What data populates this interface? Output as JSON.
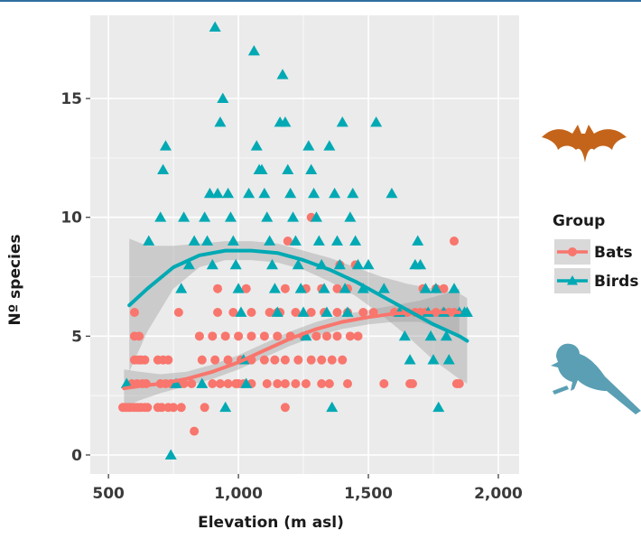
{
  "chart_data": {
    "type": "scatter",
    "title": "",
    "xlabel": "Elevation (m asl)",
    "ylabel": "Nº species",
    "xlim": [
      430,
      2080
    ],
    "ylim": [
      -0.8,
      18.5
    ],
    "x_ticks": [
      500,
      1000,
      1500,
      2000
    ],
    "x_tick_labels": [
      "500",
      "1,000",
      "1,500",
      "2,000"
    ],
    "y_ticks": [
      0,
      5,
      10,
      15
    ],
    "y_tick_labels": [
      "0",
      "5",
      "10",
      "15"
    ],
    "grid": true,
    "legend": {
      "title": "Group",
      "position": "right",
      "entries": [
        {
          "label": "Bats",
          "color": "#f8766d",
          "marker": "circle"
        },
        {
          "label": "Birds",
          "color": "#00a9b3",
          "marker": "triangle"
        }
      ]
    },
    "series": [
      {
        "name": "Bats",
        "marker": "circle",
        "color": "#f8766d",
        "points": [
          [
            555,
            2
          ],
          [
            565,
            2
          ],
          [
            575,
            2
          ],
          [
            585,
            2
          ],
          [
            600,
            2
          ],
          [
            612,
            2
          ],
          [
            625,
            2
          ],
          [
            640,
            2
          ],
          [
            650,
            2
          ],
          [
            590,
            3
          ],
          [
            610,
            3
          ],
          [
            630,
            3
          ],
          [
            645,
            3
          ],
          [
            600,
            4
          ],
          [
            615,
            4
          ],
          [
            625,
            4
          ],
          [
            640,
            4
          ],
          [
            600,
            5
          ],
          [
            618,
            5
          ],
          [
            600,
            6
          ],
          [
            690,
            2
          ],
          [
            705,
            2
          ],
          [
            730,
            2
          ],
          [
            750,
            2
          ],
          [
            780,
            2
          ],
          [
            700,
            3
          ],
          [
            720,
            3
          ],
          [
            740,
            3
          ],
          [
            760,
            3
          ],
          [
            790,
            3
          ],
          [
            820,
            3
          ],
          [
            690,
            4
          ],
          [
            710,
            4
          ],
          [
            730,
            4
          ],
          [
            770,
            6
          ],
          [
            830,
            1
          ],
          [
            870,
            2
          ],
          [
            900,
            3
          ],
          [
            930,
            3
          ],
          [
            960,
            3
          ],
          [
            990,
            3
          ],
          [
            1020,
            3
          ],
          [
            860,
            4
          ],
          [
            910,
            4
          ],
          [
            960,
            4
          ],
          [
            1010,
            4
          ],
          [
            1050,
            4
          ],
          [
            1100,
            4
          ],
          [
            850,
            5
          ],
          [
            900,
            5
          ],
          [
            950,
            5
          ],
          [
            1000,
            5
          ],
          [
            1050,
            5
          ],
          [
            1100,
            5
          ],
          [
            920,
            6
          ],
          [
            980,
            6
          ],
          [
            1050,
            6
          ],
          [
            1120,
            6
          ],
          [
            1150,
            6
          ],
          [
            920,
            7
          ],
          [
            1030,
            7
          ],
          [
            1000,
            3
          ],
          [
            1050,
            3
          ],
          [
            1110,
            3
          ],
          [
            1150,
            3
          ],
          [
            1180,
            3
          ],
          [
            1220,
            3
          ],
          [
            1260,
            3
          ],
          [
            1140,
            4
          ],
          [
            1180,
            4
          ],
          [
            1230,
            4
          ],
          [
            1280,
            4
          ],
          [
            1320,
            4
          ],
          [
            1360,
            4
          ],
          [
            1400,
            4
          ],
          [
            1150,
            5
          ],
          [
            1200,
            5
          ],
          [
            1250,
            5
          ],
          [
            1300,
            5
          ],
          [
            1340,
            5
          ],
          [
            1380,
            5
          ],
          [
            1430,
            5
          ],
          [
            1160,
            6
          ],
          [
            1220,
            6
          ],
          [
            1280,
            6
          ],
          [
            1330,
            6
          ],
          [
            1380,
            6
          ],
          [
            1420,
            6
          ],
          [
            1180,
            7
          ],
          [
            1260,
            7
          ],
          [
            1320,
            7
          ],
          [
            1380,
            7
          ],
          [
            1420,
            7
          ],
          [
            1180,
            2
          ],
          [
            1320,
            3
          ],
          [
            1350,
            3
          ],
          [
            1420,
            3
          ],
          [
            1190,
            9
          ],
          [
            1280,
            10
          ],
          [
            1390,
            8
          ],
          [
            1450,
            8
          ],
          [
            1460,
            5
          ],
          [
            1480,
            6
          ],
          [
            1520,
            6
          ],
          [
            1560,
            3
          ],
          [
            1600,
            6
          ],
          [
            1620,
            6
          ],
          [
            1650,
            6
          ],
          [
            1680,
            6
          ],
          [
            1700,
            6
          ],
          [
            1720,
            6
          ],
          [
            1760,
            6
          ],
          [
            1790,
            6
          ],
          [
            1810,
            6
          ],
          [
            1830,
            6
          ],
          [
            1660,
            3
          ],
          [
            1670,
            3
          ],
          [
            1710,
            7
          ],
          [
            1760,
            7
          ],
          [
            1790,
            7
          ],
          [
            1830,
            9
          ],
          [
            1840,
            3
          ],
          [
            1850,
            3
          ]
        ]
      },
      {
        "name": "Birds",
        "marker": "triangle",
        "color": "#00a9b3",
        "points": [
          [
            570,
            3
          ],
          [
            655,
            9
          ],
          [
            700,
            10
          ],
          [
            710,
            12
          ],
          [
            720,
            13
          ],
          [
            740,
            0
          ],
          [
            760,
            3
          ],
          [
            780,
            7
          ],
          [
            790,
            10
          ],
          [
            810,
            8
          ],
          [
            830,
            9
          ],
          [
            860,
            3
          ],
          [
            870,
            10
          ],
          [
            880,
            9
          ],
          [
            890,
            11
          ],
          [
            900,
            8
          ],
          [
            910,
            18
          ],
          [
            920,
            11
          ],
          [
            930,
            14
          ],
          [
            940,
            15
          ],
          [
            950,
            2
          ],
          [
            960,
            11
          ],
          [
            970,
            10
          ],
          [
            980,
            9
          ],
          [
            990,
            8
          ],
          [
            1000,
            7
          ],
          [
            1010,
            6
          ],
          [
            1020,
            4
          ],
          [
            1030,
            3
          ],
          [
            1040,
            11
          ],
          [
            1060,
            17
          ],
          [
            1070,
            13
          ],
          [
            1080,
            12
          ],
          [
            1090,
            12
          ],
          [
            1100,
            11
          ],
          [
            1110,
            10
          ],
          [
            1120,
            9
          ],
          [
            1130,
            8
          ],
          [
            1140,
            7
          ],
          [
            1150,
            6
          ],
          [
            1160,
            14
          ],
          [
            1170,
            16
          ],
          [
            1180,
            14
          ],
          [
            1190,
            12
          ],
          [
            1200,
            11
          ],
          [
            1210,
            10
          ],
          [
            1220,
            9
          ],
          [
            1230,
            8
          ],
          [
            1240,
            7
          ],
          [
            1250,
            6
          ],
          [
            1260,
            5
          ],
          [
            1270,
            13
          ],
          [
            1280,
            12
          ],
          [
            1290,
            11
          ],
          [
            1300,
            10
          ],
          [
            1310,
            9
          ],
          [
            1320,
            8
          ],
          [
            1330,
            7
          ],
          [
            1340,
            6
          ],
          [
            1350,
            13
          ],
          [
            1360,
            2
          ],
          [
            1370,
            11
          ],
          [
            1380,
            9
          ],
          [
            1390,
            8
          ],
          [
            1400,
            14
          ],
          [
            1410,
            7
          ],
          [
            1420,
            6
          ],
          [
            1430,
            10
          ],
          [
            1440,
            11
          ],
          [
            1450,
            9
          ],
          [
            1460,
            8
          ],
          [
            1480,
            7
          ],
          [
            1500,
            8
          ],
          [
            1530,
            14
          ],
          [
            1560,
            7
          ],
          [
            1590,
            11
          ],
          [
            1620,
            6
          ],
          [
            1640,
            5
          ],
          [
            1660,
            4
          ],
          [
            1680,
            8
          ],
          [
            1690,
            9
          ],
          [
            1700,
            8
          ],
          [
            1720,
            7
          ],
          [
            1730,
            6
          ],
          [
            1740,
            5
          ],
          [
            1750,
            4
          ],
          [
            1760,
            7
          ],
          [
            1770,
            2
          ],
          [
            1790,
            6
          ],
          [
            1800,
            5
          ],
          [
            1810,
            4
          ],
          [
            1830,
            7
          ],
          [
            1850,
            6
          ],
          [
            1870,
            6
          ],
          [
            1880,
            6
          ]
        ]
      }
    ],
    "smooth_fits": [
      {
        "name": "Bats",
        "color": "#f8766d",
        "x": [
          560,
          620,
          700,
          800,
          900,
          1000,
          1100,
          1200,
          1300,
          1400,
          1500,
          1600,
          1700,
          1800,
          1850
        ],
        "y": [
          2.8,
          2.9,
          3.0,
          3.2,
          3.5,
          3.9,
          4.4,
          4.9,
          5.3,
          5.6,
          5.8,
          5.95,
          6.0,
          6.0,
          6.0
        ],
        "band_low": [
          2.0,
          2.3,
          2.6,
          2.9,
          3.2,
          3.6,
          4.1,
          4.6,
          5.0,
          5.3,
          5.5,
          5.6,
          5.6,
          5.2,
          4.9
        ],
        "band_high": [
          3.6,
          3.5,
          3.4,
          3.5,
          3.8,
          4.2,
          4.7,
          5.2,
          5.6,
          5.9,
          6.1,
          6.3,
          6.5,
          6.8,
          7.0
        ]
      },
      {
        "name": "Birds",
        "color": "#00a9b3",
        "x": [
          580,
          650,
          750,
          850,
          950,
          1050,
          1150,
          1250,
          1350,
          1450,
          1550,
          1650,
          1750,
          1850,
          1880
        ],
        "y": [
          6.3,
          7.0,
          7.9,
          8.4,
          8.6,
          8.6,
          8.5,
          8.2,
          7.8,
          7.3,
          6.7,
          6.1,
          5.5,
          5.0,
          4.8
        ],
        "band_low": [
          3.5,
          5.2,
          7.0,
          7.9,
          8.2,
          8.2,
          8.1,
          7.8,
          7.3,
          6.7,
          5.9,
          5.0,
          4.0,
          3.2,
          3.0
        ],
        "band_high": [
          9.1,
          8.8,
          8.8,
          8.9,
          9.0,
          9.0,
          8.9,
          8.6,
          8.3,
          7.9,
          7.5,
          7.2,
          7.0,
          6.8,
          6.6
        ]
      }
    ],
    "band_color": "#9a9a9a"
  },
  "icons": {
    "bat_icon": {
      "name": "bat-icon",
      "color": "#c4641a"
    },
    "bird_icon": {
      "name": "bird-icon",
      "color": "#5a9fb4"
    }
  }
}
